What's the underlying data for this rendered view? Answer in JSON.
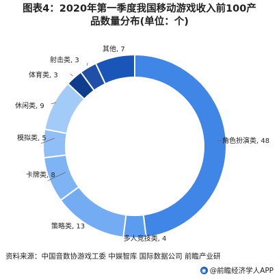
{
  "chart_data": {
    "type": "pie",
    "style": "donut",
    "title_line_1": "图表4：2020年第一季度我国移动游戏收入前100产",
    "title_line_2": "品数量分布(单位：个)",
    "slices": [
      {
        "label": "角色扮演类",
        "value": 48,
        "color": "#3f86e6"
      },
      {
        "label": "多人竞技类",
        "value": 4,
        "color": "#5b9bf0"
      },
      {
        "label": "策略类",
        "value": 13,
        "color": "#73acf2"
      },
      {
        "label": "卡牌类",
        "value": 8,
        "color": "#7fb4f4"
      },
      {
        "label": "模拟类",
        "value": 5,
        "color": "#8fbff6"
      },
      {
        "label": "休闲类",
        "value": 9,
        "color": "#a2cbf8"
      },
      {
        "label": "体育类",
        "value": 3,
        "color": "#0d3d8c"
      },
      {
        "label": "射击类",
        "value": 3,
        "color": "#1f4fa6"
      },
      {
        "label": "其他",
        "value": 7,
        "color": "#1a55b8"
      }
    ]
  },
  "footer": {
    "source": "资料来源：中国音数协游戏工委 中娱智库 国际数据公司 前瞻产业研",
    "brand_icon": "qianzhan-logo-icon",
    "brand": "@前瞻经济学人APP"
  }
}
